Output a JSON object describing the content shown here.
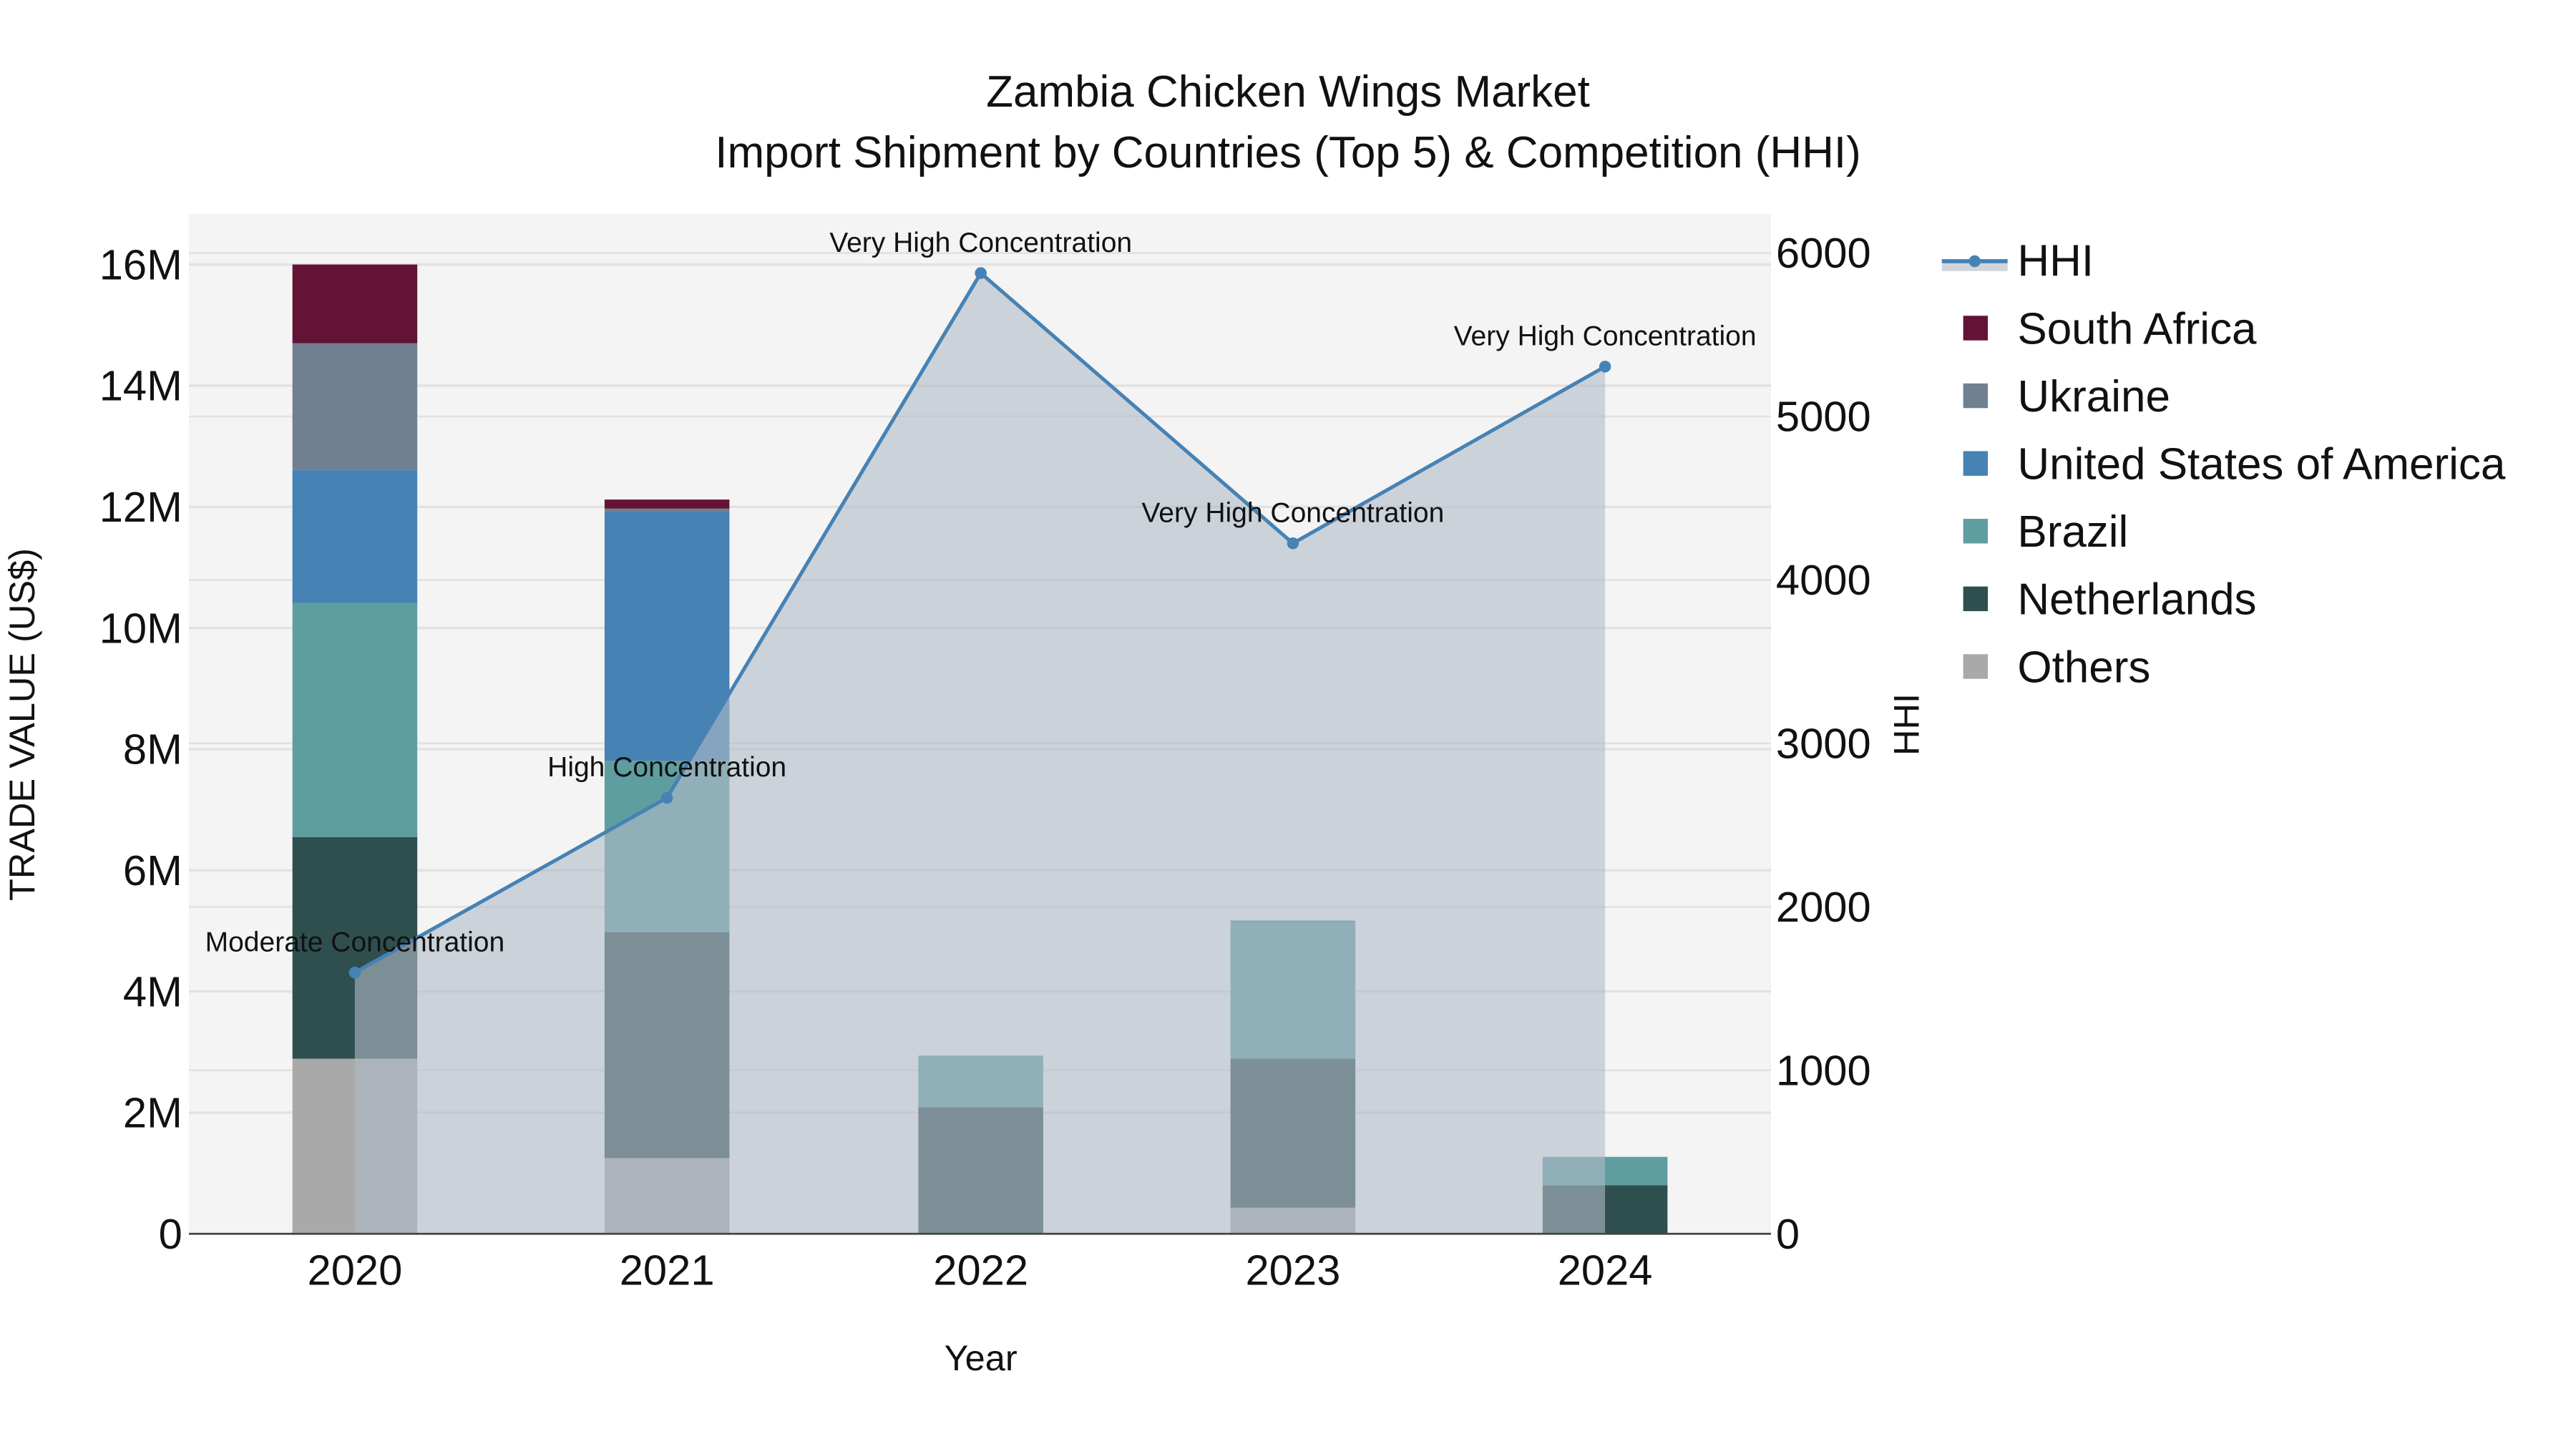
{
  "chart_data": {
    "type": "bar",
    "title": "Zambia Chicken Wings Market",
    "subtitle": "Import Shipment by Countries (Top 5) & Competition (HHI)",
    "xlabel": "Year",
    "ylabel": "TRADE VALUE (US$)",
    "y2label": "HHI",
    "categories": [
      "2020",
      "2021",
      "2022",
      "2023",
      "2024"
    ],
    "ylim": [
      0,
      16800000
    ],
    "y2lim": [
      0,
      6200
    ],
    "yticks": [
      0,
      2000000,
      4000000,
      6000000,
      8000000,
      10000000,
      12000000,
      14000000,
      16000000
    ],
    "yticklabels": [
      "0",
      "2M",
      "4M",
      "6M",
      "8M",
      "10M",
      "12M",
      "14M",
      "16M"
    ],
    "y2ticks": [
      0,
      1000,
      2000,
      3000,
      4000,
      5000,
      6000
    ],
    "y2ticklabels": [
      "0",
      "1000",
      "2000",
      "3000",
      "4000",
      "5000",
      "6000"
    ],
    "barmode": "stack",
    "grid": true,
    "legend_position": "right",
    "series": [
      {
        "name": "Others",
        "color": "#A9A9A9",
        "values": [
          2890000,
          1250000,
          0,
          430000,
          0
        ]
      },
      {
        "name": "Netherlands",
        "color": "#2F4F4F",
        "values": [
          3660000,
          3730000,
          2090000,
          2460000,
          800000
        ]
      },
      {
        "name": "Brazil",
        "color": "#5F9EA0",
        "values": [
          3860000,
          2830000,
          850000,
          2250000,
          470000
        ]
      },
      {
        "name": "United States of America",
        "color": "#4682B4",
        "values": [
          2200000,
          4110000,
          0,
          30000,
          0
        ]
      },
      {
        "name": "Ukraine",
        "color": "#708090",
        "values": [
          2090000,
          50000,
          0,
          0,
          0
        ]
      },
      {
        "name": "South Africa",
        "color": "#631436",
        "values": [
          1300000,
          150000,
          0,
          0,
          0
        ]
      }
    ],
    "line_series": {
      "name": "HHI",
      "color": "#4682B4",
      "fill_color": "rgba(176,186,200,0.6)",
      "axis": "y2",
      "values": [
        1598,
        2667,
        5877,
        4224,
        5305
      ],
      "annotations": [
        "Moderate Concentration",
        "High Concentration",
        "Very High Concentration",
        "Very High Concentration",
        "Very High Concentration"
      ]
    }
  },
  "legend": {
    "items": [
      {
        "label": "HHI",
        "kind": "line",
        "color": "#4682B4"
      },
      {
        "label": "South Africa",
        "kind": "box",
        "color": "#631436"
      },
      {
        "label": "Ukraine",
        "kind": "box",
        "color": "#708090"
      },
      {
        "label": "United States of America",
        "kind": "box",
        "color": "#4682B4"
      },
      {
        "label": "Brazil",
        "kind": "box",
        "color": "#5F9EA0"
      },
      {
        "label": "Netherlands",
        "kind": "box",
        "color": "#2F4F4F"
      },
      {
        "label": "Others",
        "kind": "box",
        "color": "#A9A9A9"
      }
    ]
  }
}
